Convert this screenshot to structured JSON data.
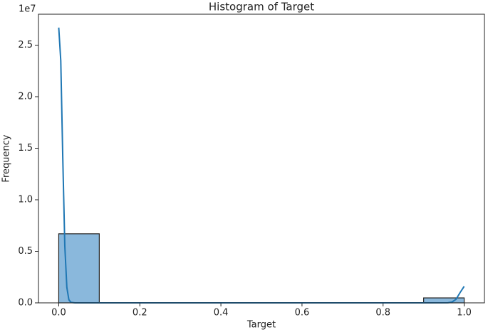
{
  "chart_data": {
    "type": "histogram",
    "title": "Histogram of Target",
    "x_label": "Target",
    "y_label": "Frequency",
    "y_offset_label": "1e7",
    "bins": [
      0,
      0.1,
      0.2,
      0.3,
      0.4,
      0.5,
      0.6,
      0.7,
      0.8,
      0.9,
      1.0
    ],
    "counts": [
      6700000,
      0,
      0,
      0,
      0,
      0,
      0,
      0,
      0,
      480000
    ],
    "color": "#8ab8dc",
    "edge_color": "#222222",
    "kde": {
      "color": "#1f77b4",
      "x": [
        0,
        0.005,
        0.01,
        0.015,
        0.02,
        0.025,
        0.03,
        0.04,
        0.1,
        0.5,
        0.9,
        0.96,
        0.97,
        0.98,
        0.99,
        1.0
      ],
      "values": [
        26700000,
        23500000,
        14000000,
        5500000,
        1500000,
        300000,
        50000,
        0,
        0,
        0,
        0,
        10000,
        80000,
        350000,
        1000000,
        1600000
      ]
    },
    "xlim": [
      -0.05,
      1.05
    ],
    "ylim": [
      0,
      28000000
    ],
    "xticks": [
      {
        "value": 0,
        "label": "0.0"
      },
      0.2,
      0.4,
      0.6,
      0.8,
      {
        "value": 1,
        "label": "1.0"
      }
    ],
    "yticks": [
      {
        "value": 0,
        "label": "0.0"
      },
      {
        "value": 5000000,
        "label": "0.5"
      },
      {
        "value": 10000000,
        "label": "1.0"
      },
      {
        "value": 15000000,
        "label": "1.5"
      },
      {
        "value": 20000000,
        "label": "2.0"
      },
      {
        "value": 25000000,
        "label": "2.5"
      }
    ],
    "grid": false
  }
}
